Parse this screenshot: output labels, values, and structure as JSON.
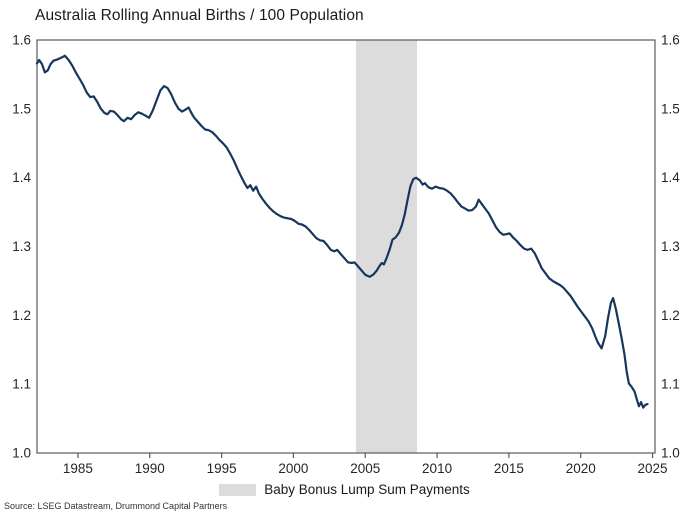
{
  "title": "Australia Rolling Annual Births / 100 Population",
  "source_note": "Source: LSEG Datastream, Drummond Capital Partners",
  "legend": {
    "label": "Baby Bonus Lump Sum Payments"
  },
  "colors": {
    "line": "#17365d",
    "band": "#dcdcdc",
    "axis": "#595959",
    "tick_text": "#262626"
  },
  "chart_data": {
    "type": "line",
    "title": "Australia Rolling Annual Births / 100 Population",
    "xlabel": "",
    "ylabel": "",
    "xlim": [
      1982.15,
      2025.17
    ],
    "ylim": [
      1.0,
      1.6
    ],
    "x_ticks": [
      1985,
      1990,
      1995,
      2000,
      2005,
      2010,
      2015,
      2020,
      2025
    ],
    "y_ticks": [
      1.0,
      1.1,
      1.2,
      1.3,
      1.4,
      1.5,
      1.6
    ],
    "grid": false,
    "legend_position": "bottom",
    "band": {
      "label": "Baby Bonus Lump Sum Payments",
      "start": 2004.35,
      "end": 2008.6
    },
    "series": [
      {
        "name": "Australia rolling annual births / 100 population",
        "points": [
          [
            1982.15,
            1.566
          ],
          [
            1982.3,
            1.571
          ],
          [
            1982.5,
            1.565
          ],
          [
            1982.7,
            1.553
          ],
          [
            1982.9,
            1.556
          ],
          [
            1983.1,
            1.565
          ],
          [
            1983.3,
            1.57
          ],
          [
            1983.6,
            1.572
          ],
          [
            1983.9,
            1.575
          ],
          [
            1984.1,
            1.577
          ],
          [
            1984.35,
            1.571
          ],
          [
            1984.6,
            1.563
          ],
          [
            1984.85,
            1.553
          ],
          [
            1985.1,
            1.544
          ],
          [
            1985.35,
            1.535
          ],
          [
            1985.6,
            1.524
          ],
          [
            1985.85,
            1.517
          ],
          [
            1986.1,
            1.518
          ],
          [
            1986.35,
            1.51
          ],
          [
            1986.6,
            1.5
          ],
          [
            1986.85,
            1.494
          ],
          [
            1987.05,
            1.492
          ],
          [
            1987.25,
            1.497
          ],
          [
            1987.5,
            1.496
          ],
          [
            1987.75,
            1.491
          ],
          [
            1988.0,
            1.485
          ],
          [
            1988.2,
            1.482
          ],
          [
            1988.45,
            1.487
          ],
          [
            1988.7,
            1.485
          ],
          [
            1988.95,
            1.491
          ],
          [
            1989.2,
            1.495
          ],
          [
            1989.45,
            1.493
          ],
          [
            1989.7,
            1.49
          ],
          [
            1989.95,
            1.487
          ],
          [
            1990.2,
            1.497
          ],
          [
            1990.5,
            1.514
          ],
          [
            1990.75,
            1.527
          ],
          [
            1991.0,
            1.533
          ],
          [
            1991.25,
            1.53
          ],
          [
            1991.5,
            1.521
          ],
          [
            1991.75,
            1.509
          ],
          [
            1992.0,
            1.5
          ],
          [
            1992.25,
            1.496
          ],
          [
            1992.5,
            1.499
          ],
          [
            1992.7,
            1.502
          ],
          [
            1992.9,
            1.494
          ],
          [
            1993.1,
            1.487
          ],
          [
            1993.35,
            1.481
          ],
          [
            1993.6,
            1.475
          ],
          [
            1993.85,
            1.47
          ],
          [
            1994.1,
            1.469
          ],
          [
            1994.35,
            1.466
          ],
          [
            1994.6,
            1.461
          ],
          [
            1994.85,
            1.455
          ],
          [
            1995.1,
            1.45
          ],
          [
            1995.35,
            1.444
          ],
          [
            1995.6,
            1.435
          ],
          [
            1995.85,
            1.425
          ],
          [
            1996.1,
            1.413
          ],
          [
            1996.35,
            1.402
          ],
          [
            1996.6,
            1.392
          ],
          [
            1996.8,
            1.385
          ],
          [
            1997.0,
            1.389
          ],
          [
            1997.2,
            1.381
          ],
          [
            1997.4,
            1.387
          ],
          [
            1997.6,
            1.377
          ],
          [
            1997.85,
            1.369
          ],
          [
            1998.1,
            1.362
          ],
          [
            1998.35,
            1.356
          ],
          [
            1998.6,
            1.351
          ],
          [
            1998.85,
            1.347
          ],
          [
            1999.1,
            1.344
          ],
          [
            1999.35,
            1.342
          ],
          [
            1999.6,
            1.341
          ],
          [
            1999.85,
            1.34
          ],
          [
            2000.1,
            1.337
          ],
          [
            2000.35,
            1.333
          ],
          [
            2000.6,
            1.332
          ],
          [
            2000.85,
            1.329
          ],
          [
            2001.1,
            1.324
          ],
          [
            2001.35,
            1.318
          ],
          [
            2001.6,
            1.312
          ],
          [
            2001.85,
            1.309
          ],
          [
            2002.1,
            1.308
          ],
          [
            2002.35,
            1.302
          ],
          [
            2002.6,
            1.295
          ],
          [
            2002.85,
            1.293
          ],
          [
            2003.05,
            1.295
          ],
          [
            2003.3,
            1.289
          ],
          [
            2003.55,
            1.283
          ],
          [
            2003.8,
            1.277
          ],
          [
            2004.05,
            1.276
          ],
          [
            2004.25,
            1.277
          ],
          [
            2004.5,
            1.271
          ],
          [
            2004.75,
            1.265
          ],
          [
            2005.0,
            1.259
          ],
          [
            2005.3,
            1.256
          ],
          [
            2005.55,
            1.259
          ],
          [
            2005.8,
            1.265
          ],
          [
            2006.0,
            1.272
          ],
          [
            2006.15,
            1.276
          ],
          [
            2006.3,
            1.274
          ],
          [
            2006.5,
            1.284
          ],
          [
            2006.7,
            1.296
          ],
          [
            2006.9,
            1.31
          ],
          [
            2007.1,
            1.313
          ],
          [
            2007.35,
            1.32
          ],
          [
            2007.55,
            1.331
          ],
          [
            2007.75,
            1.347
          ],
          [
            2007.95,
            1.368
          ],
          [
            2008.15,
            1.388
          ],
          [
            2008.35,
            1.398
          ],
          [
            2008.55,
            1.4
          ],
          [
            2008.8,
            1.396
          ],
          [
            2009.0,
            1.39
          ],
          [
            2009.15,
            1.392
          ],
          [
            2009.4,
            1.386
          ],
          [
            2009.65,
            1.384
          ],
          [
            2009.9,
            1.387
          ],
          [
            2010.15,
            1.385
          ],
          [
            2010.45,
            1.384
          ],
          [
            2010.7,
            1.381
          ],
          [
            2010.95,
            1.377
          ],
          [
            2011.2,
            1.371
          ],
          [
            2011.45,
            1.364
          ],
          [
            2011.7,
            1.358
          ],
          [
            2011.95,
            1.355
          ],
          [
            2012.2,
            1.352
          ],
          [
            2012.45,
            1.353
          ],
          [
            2012.7,
            1.358
          ],
          [
            2012.9,
            1.368
          ],
          [
            2013.1,
            1.362
          ],
          [
            2013.35,
            1.355
          ],
          [
            2013.6,
            1.348
          ],
          [
            2013.85,
            1.338
          ],
          [
            2014.1,
            1.328
          ],
          [
            2014.35,
            1.321
          ],
          [
            2014.6,
            1.317
          ],
          [
            2014.85,
            1.318
          ],
          [
            2015.05,
            1.319
          ],
          [
            2015.3,
            1.313
          ],
          [
            2015.55,
            1.308
          ],
          [
            2015.8,
            1.302
          ],
          [
            2016.05,
            1.297
          ],
          [
            2016.3,
            1.295
          ],
          [
            2016.55,
            1.297
          ],
          [
            2016.8,
            1.29
          ],
          [
            2017.05,
            1.279
          ],
          [
            2017.3,
            1.268
          ],
          [
            2017.55,
            1.261
          ],
          [
            2017.8,
            1.254
          ],
          [
            2018.05,
            1.25
          ],
          [
            2018.3,
            1.247
          ],
          [
            2018.55,
            1.244
          ],
          [
            2018.8,
            1.24
          ],
          [
            2019.05,
            1.234
          ],
          [
            2019.3,
            1.228
          ],
          [
            2019.55,
            1.22
          ],
          [
            2019.8,
            1.212
          ],
          [
            2020.05,
            1.205
          ],
          [
            2020.3,
            1.198
          ],
          [
            2020.55,
            1.191
          ],
          [
            2020.8,
            1.181
          ],
          [
            2021.0,
            1.17
          ],
          [
            2021.2,
            1.16
          ],
          [
            2021.45,
            1.152
          ],
          [
            2021.7,
            1.17
          ],
          [
            2021.9,
            1.196
          ],
          [
            2022.1,
            1.218
          ],
          [
            2022.25,
            1.225
          ],
          [
            2022.45,
            1.209
          ],
          [
            2022.65,
            1.188
          ],
          [
            2022.85,
            1.166
          ],
          [
            2023.05,
            1.143
          ],
          [
            2023.2,
            1.118
          ],
          [
            2023.35,
            1.101
          ],
          [
            2023.55,
            1.096
          ],
          [
            2023.75,
            1.089
          ],
          [
            2023.9,
            1.078
          ],
          [
            2024.05,
            1.068
          ],
          [
            2024.2,
            1.074
          ],
          [
            2024.35,
            1.066
          ],
          [
            2024.5,
            1.07
          ],
          [
            2024.65,
            1.071
          ]
        ]
      }
    ]
  }
}
